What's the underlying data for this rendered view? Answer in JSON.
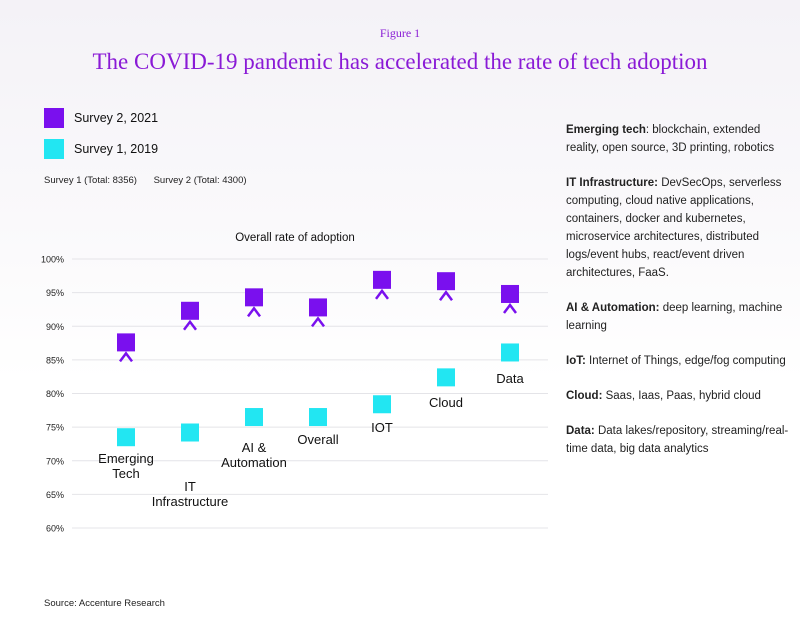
{
  "figure_label": "Figure 1",
  "title": "The COVID-19 pandemic has accelerated the rate of tech adoption",
  "legend": [
    {
      "label": "Survey 2, 2021",
      "color": "#7a10ee"
    },
    {
      "label": "Survey 1, 2019",
      "color": "#22e6f2"
    }
  ],
  "totals": {
    "survey1": "Survey 1 (Total: 8356)",
    "survey2": "Survey 2 (Total: 4300)"
  },
  "source": "Source: Accenture Research",
  "chart_data": {
    "type": "scatter",
    "title": "Overall rate of adoption",
    "ylim": [
      60,
      100
    ],
    "yticks": [
      "100%",
      "95%",
      "90%",
      "85%",
      "80%",
      "75%",
      "70%",
      "65%",
      "60%"
    ],
    "categories": [
      "Emerging Tech",
      "IT Infrastructure",
      "AI & Automation",
      "Overall",
      "IOT",
      "Cloud",
      "Data"
    ],
    "category_labels": [
      [
        "Emerging",
        "Tech"
      ],
      [
        "IT",
        "Infrastructure"
      ],
      [
        "AI &",
        "Automation"
      ],
      [
        "Overall"
      ],
      [
        "IOT"
      ],
      [
        "Cloud"
      ],
      [
        "Data"
      ]
    ],
    "series": [
      {
        "name": "Survey 1, 2019",
        "color": "#22e6f2",
        "values": [
          73.5,
          74.2,
          76.5,
          76.5,
          78.4,
          82.4,
          86.1
        ]
      },
      {
        "name": "Survey 2, 2021",
        "color": "#7a10ee",
        "values": [
          87.6,
          92.3,
          94.3,
          92.8,
          96.9,
          96.7,
          94.8
        ]
      }
    ]
  },
  "notes": [
    {
      "label": "Emerging tech",
      "sep": ": ",
      "text": "blockchain, extended reality, open source, 3D printing, robotics"
    },
    {
      "label": "IT Infrastructure:",
      "sep": " ",
      "text": "DevSecOps, serverless computing, cloud native applications, containers, docker and kubernetes, microservice architectures, distributed logs/event hubs, react/event driven architectures, FaaS."
    },
    {
      "label": "AI & Automation:",
      "sep": " ",
      "text": "deep learning, machine learning"
    },
    {
      "label": "IoT:",
      "sep": " ",
      "text": "Internet of Things, edge/fog computing"
    },
    {
      "label": "Cloud:",
      "sep": " ",
      "text": "Saas, Iaas, Paas, hybrid cloud"
    },
    {
      "label": "Data:",
      "sep": " ",
      "text": "Data lakes/repository, streaming/real-time data, big data analytics"
    }
  ]
}
